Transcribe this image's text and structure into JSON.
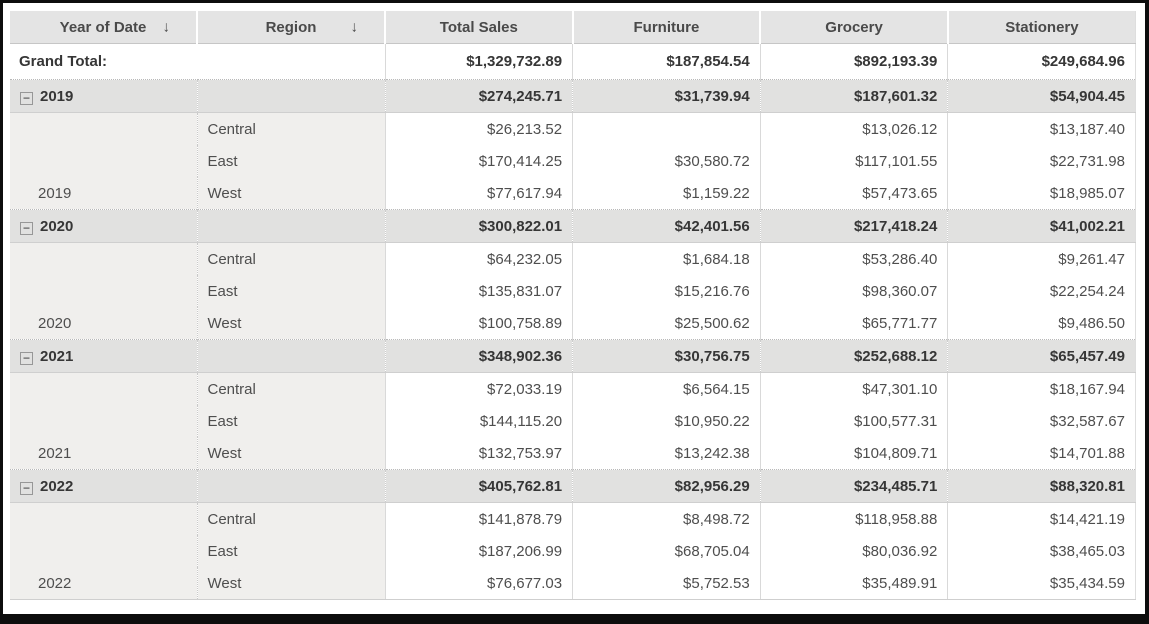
{
  "icons": {
    "sort_desc_glyph": "↓",
    "collapse_glyph": "−"
  },
  "colors": {
    "frame": "#0d0d0d",
    "header_bg": "#e4e4e4",
    "summary_bg": "#e1e1e0",
    "rowlabel_bg": "#f0efed",
    "value_bg": "#ffffff",
    "text": "#4e4e4e",
    "text_bold": "#363636",
    "grid": "#c9c9c9"
  },
  "table": {
    "columns": [
      {
        "label": "Year of Date",
        "sortable": true
      },
      {
        "label": "Region",
        "sortable": true
      },
      {
        "label": "Total Sales",
        "sortable": false
      },
      {
        "label": "Furniture",
        "sortable": false
      },
      {
        "label": "Grocery",
        "sortable": false
      },
      {
        "label": "Stationery",
        "sortable": false
      }
    ],
    "grand_total": {
      "label": "Grand Total:",
      "values": [
        "$1,329,732.89",
        "$187,854.54",
        "$892,193.39",
        "$249,684.96"
      ]
    },
    "groups": [
      {
        "year": "2019",
        "collapsed": false,
        "totals": [
          "$274,245.71",
          "$31,739.94",
          "$187,601.32",
          "$54,904.45"
        ],
        "rows": [
          {
            "region": "Central",
            "values": [
              "$26,213.52",
              "",
              "$13,026.12",
              "$13,187.40"
            ]
          },
          {
            "region": "East",
            "values": [
              "$170,414.25",
              "$30,580.72",
              "$117,101.55",
              "$22,731.98"
            ]
          },
          {
            "region": "West",
            "values": [
              "$77,617.94",
              "$1,159.22",
              "$57,473.65",
              "$18,985.07"
            ]
          }
        ]
      },
      {
        "year": "2020",
        "collapsed": false,
        "totals": [
          "$300,822.01",
          "$42,401.56",
          "$217,418.24",
          "$41,002.21"
        ],
        "rows": [
          {
            "region": "Central",
            "values": [
              "$64,232.05",
              "$1,684.18",
              "$53,286.40",
              "$9,261.47"
            ]
          },
          {
            "region": "East",
            "values": [
              "$135,831.07",
              "$15,216.76",
              "$98,360.07",
              "$22,254.24"
            ]
          },
          {
            "region": "West",
            "values": [
              "$100,758.89",
              "$25,500.62",
              "$65,771.77",
              "$9,486.50"
            ]
          }
        ]
      },
      {
        "year": "2021",
        "collapsed": false,
        "totals": [
          "$348,902.36",
          "$30,756.75",
          "$252,688.12",
          "$65,457.49"
        ],
        "rows": [
          {
            "region": "Central",
            "values": [
              "$72,033.19",
              "$6,564.15",
              "$47,301.10",
              "$18,167.94"
            ]
          },
          {
            "region": "East",
            "values": [
              "$144,115.20",
              "$10,950.22",
              "$100,577.31",
              "$32,587.67"
            ]
          },
          {
            "region": "West",
            "values": [
              "$132,753.97",
              "$13,242.38",
              "$104,809.71",
              "$14,701.88"
            ]
          }
        ]
      },
      {
        "year": "2022",
        "collapsed": false,
        "totals": [
          "$405,762.81",
          "$82,956.29",
          "$234,485.71",
          "$88,320.81"
        ],
        "rows": [
          {
            "region": "Central",
            "values": [
              "$141,878.79",
              "$8,498.72",
              "$118,958.88",
              "$14,421.19"
            ]
          },
          {
            "region": "East",
            "values": [
              "$187,206.99",
              "$68,705.04",
              "$80,036.92",
              "$38,465.03"
            ]
          },
          {
            "region": "West",
            "values": [
              "$76,677.03",
              "$5,752.53",
              "$35,489.91",
              "$35,434.59"
            ]
          }
        ]
      }
    ]
  }
}
